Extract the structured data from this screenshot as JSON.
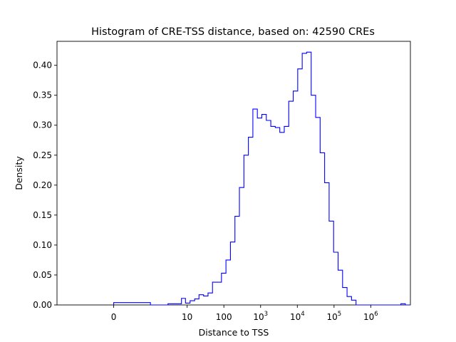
{
  "chart_data": {
    "type": "step-histogram",
    "title": "Histogram of CRE-TSS distance, based on: 42590 CREs",
    "xlabel": "Distance to TSS",
    "ylabel": "Density",
    "x_scale": "symlog",
    "xlim": [
      -3.5,
      12000000
    ],
    "ylim": [
      0,
      0.44
    ],
    "grid": false,
    "line_color": "#0000ff",
    "x_ticks": [
      {
        "value": 0,
        "label": "0"
      },
      {
        "value": 10,
        "label": "10"
      },
      {
        "value": 100,
        "label": "100"
      },
      {
        "value": 1000,
        "label": "10",
        "exponent": "3"
      },
      {
        "value": 10000,
        "label": "10",
        "exponent": "4"
      },
      {
        "value": 100000,
        "label": "10",
        "exponent": "5"
      },
      {
        "value": 1000000,
        "label": "10",
        "exponent": "6"
      }
    ],
    "y_ticks": [
      {
        "value": 0,
        "label": "0.00"
      },
      {
        "value": 0.05,
        "label": "0.05"
      },
      {
        "value": 0.1,
        "label": "0.10"
      },
      {
        "value": 0.15,
        "label": "0.15"
      },
      {
        "value": 0.2,
        "label": "0.20"
      },
      {
        "value": 0.25,
        "label": "0.25"
      },
      {
        "value": 0.3,
        "label": "0.30"
      },
      {
        "value": 0.35,
        "label": "0.35"
      },
      {
        "value": 0.4,
        "label": "0.40"
      }
    ],
    "bin_edges": [
      0,
      1,
      3,
      5,
      7,
      9,
      12,
      16,
      21,
      28,
      37,
      49,
      65,
      86,
      114,
      151,
      200,
      265,
      351,
      465,
      616,
      816,
      1081,
      1432,
      1897,
      2513,
      3329,
      4410,
      5842,
      7739,
      10252,
      13581,
      17991,
      23833,
      31572,
      41824,
      55405,
      73396,
      97230,
      128803,
      170628,
      226035,
      299435,
      396669,
      525477,
      696110,
      922147,
      1221580,
      1618245,
      2143714,
      2839811,
      3761937,
      4983490,
      6601700,
      8745371,
      11585114
    ],
    "densities": [
      0.004,
      0.0,
      0.002,
      0.002,
      0.011,
      0.003,
      0.007,
      0.01,
      0.017,
      0.015,
      0.02,
      0.038,
      0.038,
      0.053,
      0.075,
      0.105,
      0.148,
      0.196,
      0.25,
      0.28,
      0.327,
      0.312,
      0.318,
      0.308,
      0.298,
      0.296,
      0.288,
      0.298,
      0.34,
      0.357,
      0.394,
      0.42,
      0.422,
      0.35,
      0.313,
      0.254,
      0.204,
      0.14,
      0.088,
      0.058,
      0.029,
      0.014,
      0.008,
      0.0,
      0.0,
      0.0,
      0.0,
      0.0,
      0.0,
      0.0,
      0.0,
      0.0,
      0.0,
      0.002,
      0.0
    ]
  }
}
